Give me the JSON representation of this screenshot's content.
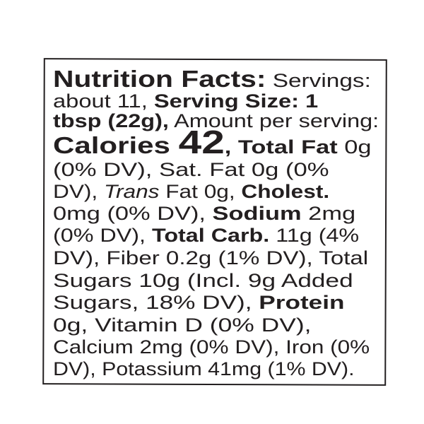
{
  "label": {
    "lines": [
      [
        {
          "t": "Nutrition Facts:",
          "s": "b big"
        },
        {
          "t": " Servings:"
        }
      ],
      [
        {
          "t": "about 11, "
        },
        {
          "t": "Serving Size: 1",
          "s": "b"
        }
      ],
      [
        {
          "t": "tbsp (22g),",
          "s": "b"
        },
        {
          "t": " Amount per serving:"
        }
      ],
      [
        {
          "t": "Calories ",
          "s": "b big"
        },
        {
          "t": "42",
          "s": "b huge"
        },
        {
          "t": ", Total Fat",
          "s": "b"
        },
        {
          "t": " 0g"
        }
      ],
      [
        {
          "t": "(0% DV), Sat. Fat 0g (0%"
        }
      ],
      [
        {
          "t": "DV), "
        },
        {
          "t": "Trans",
          "s": "i"
        },
        {
          "t": " Fat 0g, "
        },
        {
          "t": "Cholest.",
          "s": "b"
        }
      ],
      [
        {
          "t": "0mg (0% DV), "
        },
        {
          "t": "Sodium",
          "s": "b"
        },
        {
          "t": " 2mg"
        }
      ],
      [
        {
          "t": "(0% DV), "
        },
        {
          "t": "Total Carb.",
          "s": "b"
        },
        {
          "t": " 11g (4%"
        }
      ],
      [
        {
          "t": "DV), Fiber 0.2g (1% DV), Total"
        }
      ],
      [
        {
          "t": "Sugars 10g (Incl. 9g Added"
        }
      ],
      [
        {
          "t": "Sugars, 18% DV), "
        },
        {
          "t": "Protein",
          "s": "b"
        }
      ],
      [
        {
          "t": "0g, Vitamin D (0% DV),"
        }
      ],
      [
        {
          "t": "Calcium 2mg (0% DV), Iron (0%"
        }
      ],
      [
        {
          "t": "DV), Potassium 41mg (1% DV)."
        }
      ]
    ]
  }
}
